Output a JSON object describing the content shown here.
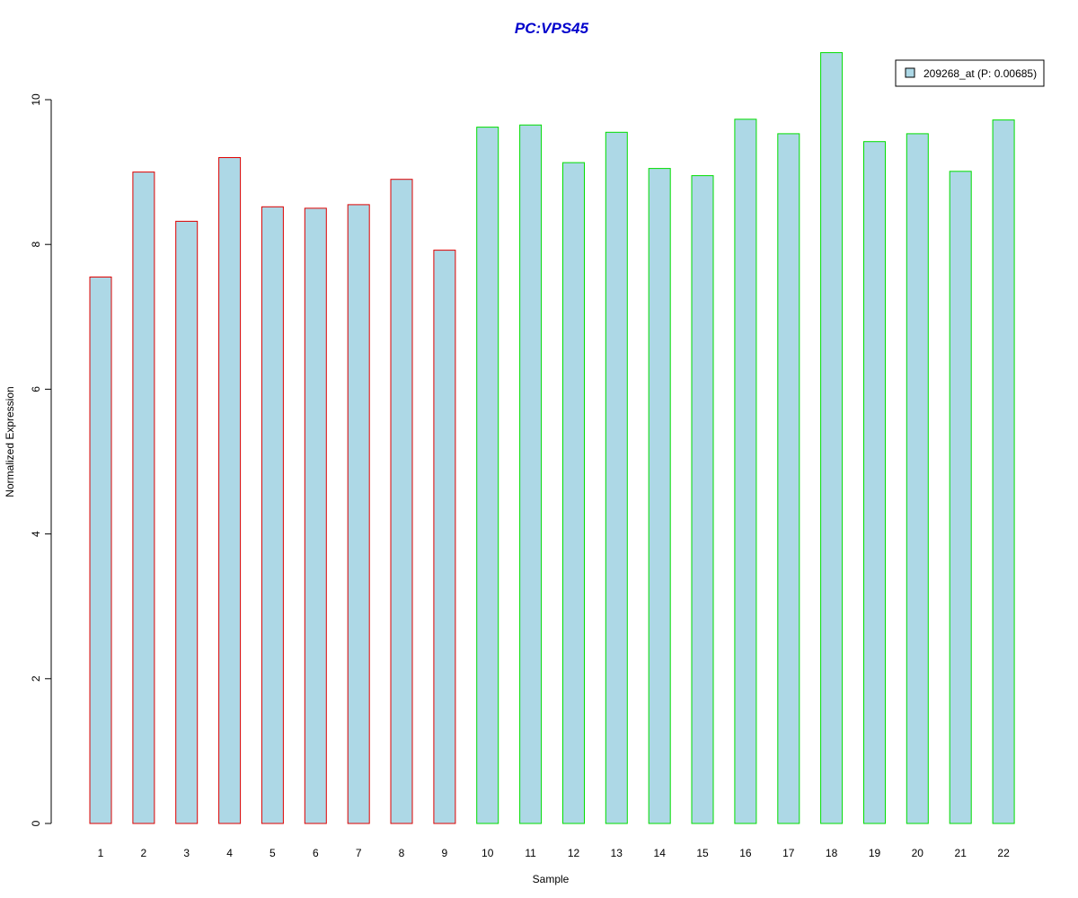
{
  "chart_data": {
    "type": "bar",
    "title": "PC:VPS45",
    "xlabel": "Sample",
    "ylabel": "Normalized Expression",
    "ylim": [
      0,
      10
    ],
    "y_ticks": [
      0,
      2,
      4,
      6,
      8,
      10
    ],
    "categories": [
      "1",
      "2",
      "3",
      "4",
      "5",
      "6",
      "7",
      "8",
      "9",
      "10",
      "11",
      "12",
      "13",
      "14",
      "15",
      "16",
      "17",
      "18",
      "19",
      "20",
      "21",
      "22"
    ],
    "series": [
      {
        "name": "209268_at (P: 0.00685)",
        "values": [
          7.55,
          9.0,
          8.32,
          9.2,
          8.52,
          8.5,
          8.55,
          8.9,
          7.92,
          9.62,
          9.65,
          9.13,
          9.55,
          9.05,
          8.95,
          9.73,
          9.53,
          10.65,
          9.42,
          9.53,
          9.01,
          9.72
        ]
      }
    ],
    "group_border_colors": [
      "#dd0000",
      "#dd0000",
      "#dd0000",
      "#dd0000",
      "#dd0000",
      "#dd0000",
      "#dd0000",
      "#dd0000",
      "#dd0000",
      "#00dd00",
      "#00dd00",
      "#00dd00",
      "#00dd00",
      "#00dd00",
      "#00dd00",
      "#00dd00",
      "#00dd00",
      "#00dd00",
      "#00dd00",
      "#00dd00",
      "#00dd00",
      "#00dd00"
    ],
    "bar_fill_color": "#add8e6",
    "title_color": "#0000cc",
    "legend_placement": "top-right",
    "grid": false
  }
}
